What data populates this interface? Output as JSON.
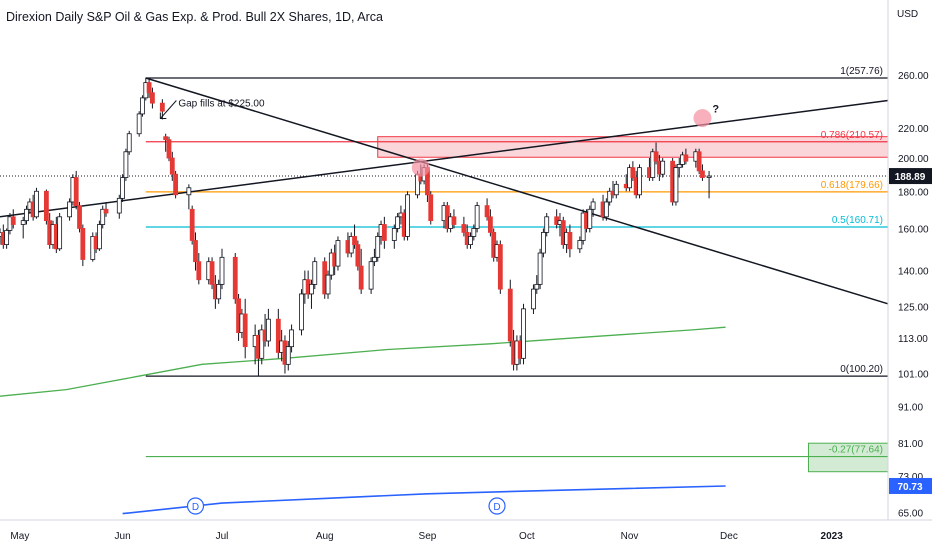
{
  "header": {
    "title": "Direxion Daily S&P Oil & Gas Exp. & Prod. Bull 2X Shares, 1D, Arca",
    "currency": "USD"
  },
  "colors": {
    "up": "#ffffff",
    "down": "#e53935",
    "wick": "#131722",
    "fib_1": "#131722",
    "fib_0786": "#f23645",
    "fib_0618": "#ff9800",
    "fib_05": "#00bcd4",
    "fib_0": "#131722",
    "fib_neg027": "#4caf50",
    "ma_200": "#4caf50",
    "ma_long": "#2962ff",
    "zone_fill": "#f8c8cf",
    "zone_border": "#f23645",
    "target_fill": "#c8e6c9",
    "last_price_bg": "#131722",
    "ma_label_bg": "#2962ff"
  },
  "chart_data": {
    "type": "candlestick",
    "title": "Direxion Daily S&P Oil & Gas Exp. & Prod. Bull 2X Shares, 1D, Arca",
    "y_axis": {
      "scale": "log",
      "currency": "USD",
      "ticks": [
        260,
        220,
        200,
        180,
        160,
        140,
        125,
        113,
        101,
        91,
        81,
        73,
        65
      ],
      "tick_labels": [
        "260.00",
        "220.00",
        "200.00",
        "180.00",
        "160.00",
        "140.00",
        "125.00",
        "113.00",
        "101.00",
        "91.00",
        "81.00",
        "73.00",
        "65.00"
      ],
      "range": [
        63.5,
        302
      ]
    },
    "x_axis": {
      "labels": [
        "May",
        "Jun",
        "Jul",
        "Aug",
        "Sep",
        "Oct",
        "Nov",
        "Dec",
        "2023"
      ],
      "label_dates": [
        "2022-05-01",
        "2022-06-01",
        "2022-07-01",
        "2022-08-01",
        "2022-09-01",
        "2022-10-01",
        "2022-11-01",
        "2022-12-01",
        "2023-01-01"
      ],
      "range": [
        "2022-04-25",
        "2023-01-18"
      ]
    },
    "last_price": {
      "value": 188.89,
      "label": "188.89"
    },
    "ma_label": {
      "value": 70.73,
      "label": "70.73"
    },
    "fib_levels": [
      {
        "label": "1(257.76)",
        "value": 257.76,
        "color": "#131722"
      },
      {
        "label": "0.786(210.57)",
        "value": 210.57,
        "color": "#f23645"
      },
      {
        "label": "0.618(179.66)",
        "value": 179.66,
        "color": "#ff9800"
      },
      {
        "label": "0.5(160.71)",
        "value": 160.71,
        "color": "#00bcd4"
      },
      {
        "label": "0(100.20)",
        "value": 100.2,
        "color": "#131722"
      },
      {
        "label": "-0.27(77.64)",
        "value": 77.64,
        "color": "#4caf50"
      }
    ],
    "fib_start_date": "2022-06-08",
    "fib_end_date": "2023-01-18",
    "resistance_zone": {
      "start": "2022-08-17",
      "end": "2023-01-18",
      "low": 200.5,
      "high": 214
    },
    "target_zone": {
      "start": "2022-12-25",
      "end": "2023-01-18",
      "low": 74,
      "high": 81
    },
    "trendlines": [
      {
        "name": "descending",
        "from": [
          "2022-06-08",
          257.76
        ],
        "to": [
          "2023-01-18",
          126
        ]
      },
      {
        "name": "ascending",
        "from": [
          "2022-04-25",
          166
        ],
        "to": [
          "2023-01-18",
          240
        ]
      }
    ],
    "ma_200": [
      [
        "2022-04-25",
        94
      ],
      [
        "2022-05-15",
        96
      ],
      [
        "2022-06-05",
        100
      ],
      [
        "2022-06-25",
        104
      ],
      [
        "2022-07-20",
        106
      ],
      [
        "2022-08-20",
        109
      ],
      [
        "2022-09-20",
        111
      ],
      [
        "2022-10-20",
        113.5
      ],
      [
        "2022-11-20",
        116
      ],
      [
        "2022-11-30",
        117
      ]
    ],
    "ma_long": [
      [
        "2022-06-01",
        64.8
      ],
      [
        "2022-07-01",
        67
      ],
      [
        "2022-08-01",
        68
      ],
      [
        "2022-09-01",
        69
      ],
      [
        "2022-10-01",
        69.6
      ],
      [
        "2022-11-01",
        70.2
      ],
      [
        "2022-11-30",
        70.73
      ]
    ],
    "dividend_markers": [
      {
        "date": "2022-06-23",
        "label": "D"
      },
      {
        "date": "2022-09-22",
        "label": "D"
      }
    ],
    "circles": [
      {
        "date": "2022-08-30",
        "value": 194
      },
      {
        "date": "2022-11-23",
        "value": 227
      }
    ],
    "annotations": [
      {
        "text": "Gap fills at $225.00",
        "date": "2022-06-13",
        "value": 234
      },
      {
        "text": "?",
        "date": "2022-11-26",
        "value": 231
      }
    ],
    "ohlc": [
      [
        "2022-04-25",
        156,
        160,
        152,
        158
      ],
      [
        "2022-04-26",
        158,
        162,
        150,
        152
      ],
      [
        "2022-04-27",
        152,
        160,
        150,
        159
      ],
      [
        "2022-04-28",
        159,
        168,
        157,
        166
      ],
      [
        "2022-04-29",
        166,
        170,
        160,
        162
      ],
      [
        "2022-05-02",
        162,
        166,
        155,
        164
      ],
      [
        "2022-05-03",
        164,
        172,
        162,
        170
      ],
      [
        "2022-05-04",
        170,
        176,
        168,
        174
      ],
      [
        "2022-05-05",
        174,
        178,
        164,
        166
      ],
      [
        "2022-05-06",
        166,
        182,
        165,
        180
      ],
      [
        "2022-05-09",
        180,
        181,
        162,
        164
      ],
      [
        "2022-05-10",
        164,
        168,
        150,
        152
      ],
      [
        "2022-05-11",
        152,
        164,
        150,
        162
      ],
      [
        "2022-05-12",
        162,
        166,
        148,
        150
      ],
      [
        "2022-05-13",
        150,
        168,
        149,
        166
      ],
      [
        "2022-05-16",
        166,
        176,
        164,
        174
      ],
      [
        "2022-05-17",
        174,
        190,
        172,
        188
      ],
      [
        "2022-05-18",
        188,
        192,
        170,
        172
      ],
      [
        "2022-05-19",
        172,
        174,
        158,
        160
      ],
      [
        "2022-05-20",
        160,
        162,
        142,
        145
      ],
      [
        "2022-05-23",
        145,
        158,
        144,
        156
      ],
      [
        "2022-05-24",
        156,
        158,
        148,
        150
      ],
      [
        "2022-05-25",
        150,
        164,
        149,
        162
      ],
      [
        "2022-05-26",
        162,
        172,
        160,
        170
      ],
      [
        "2022-05-27",
        170,
        174,
        166,
        168
      ],
      [
        "2022-05-31",
        168,
        178,
        165,
        176
      ],
      [
        "2022-06-01",
        176,
        190,
        174,
        188
      ],
      [
        "2022-06-02",
        188,
        206,
        186,
        204
      ],
      [
        "2022-06-03",
        204,
        218,
        202,
        216
      ],
      [
        "2022-06-06",
        216,
        232,
        214,
        230
      ],
      [
        "2022-06-07",
        230,
        244,
        228,
        242
      ],
      [
        "2022-06-08",
        242,
        258,
        240,
        254
      ],
      [
        "2022-06-09",
        254,
        257.76,
        242,
        246
      ],
      [
        "2022-06-10",
        246,
        250,
        234,
        238
      ],
      [
        "2022-06-13",
        238,
        241,
        226,
        232
      ],
      [
        "2022-06-14",
        214,
        216,
        204,
        212
      ],
      [
        "2022-06-15",
        212,
        214,
        198,
        200
      ],
      [
        "2022-06-16",
        200,
        204,
        186,
        190
      ],
      [
        "2022-06-17",
        190,
        192,
        176,
        178
      ],
      [
        "2022-06-21",
        178,
        184,
        170,
        182
      ],
      [
        "2022-06-22",
        170,
        172,
        152,
        154
      ],
      [
        "2022-06-23",
        154,
        158,
        140,
        144
      ],
      [
        "2022-06-24",
        144,
        148,
        134,
        136
      ],
      [
        "2022-06-27",
        136,
        146,
        134,
        144
      ],
      [
        "2022-06-28",
        144,
        146,
        132,
        134
      ],
      [
        "2022-06-29",
        134,
        138,
        124,
        128
      ],
      [
        "2022-06-30",
        128,
        136,
        126,
        134
      ],
      [
        "2022-07-01",
        134,
        150,
        132,
        146
      ],
      [
        "2022-07-05",
        146,
        148,
        126,
        128
      ],
      [
        "2022-07-06",
        128,
        130,
        112,
        115
      ],
      [
        "2022-07-07",
        115,
        124,
        113,
        122
      ],
      [
        "2022-07-08",
        122,
        128,
        106,
        110
      ],
      [
        "2022-07-11",
        110,
        118,
        104,
        114
      ],
      [
        "2022-07-12",
        114,
        116,
        100.2,
        106
      ],
      [
        "2022-07-13",
        106,
        118,
        104,
        116
      ],
      [
        "2022-07-14",
        116,
        122,
        110,
        112
      ],
      [
        "2022-07-15",
        112,
        124,
        110,
        120
      ],
      [
        "2022-07-18",
        120,
        124,
        106,
        108
      ],
      [
        "2022-07-19",
        108,
        116,
        105,
        112
      ],
      [
        "2022-07-20",
        112,
        114,
        101,
        104
      ],
      [
        "2022-07-21",
        104,
        112,
        102,
        110
      ],
      [
        "2022-07-22",
        110,
        118,
        108,
        116
      ],
      [
        "2022-07-25",
        116,
        132,
        114,
        130
      ],
      [
        "2022-07-26",
        130,
        140,
        126,
        136
      ],
      [
        "2022-07-27",
        136,
        140,
        128,
        130
      ],
      [
        "2022-07-28",
        130,
        136,
        124,
        134
      ],
      [
        "2022-07-29",
        134,
        146,
        132,
        144
      ],
      [
        "2022-08-01",
        144,
        146,
        128,
        130
      ],
      [
        "2022-08-02",
        130,
        140,
        128,
        138
      ],
      [
        "2022-08-03",
        138,
        150,
        136,
        148
      ],
      [
        "2022-08-04",
        148,
        152,
        138,
        142
      ],
      [
        "2022-08-05",
        142,
        156,
        140,
        154
      ],
      [
        "2022-08-08",
        154,
        158,
        146,
        148
      ],
      [
        "2022-08-09",
        148,
        158,
        146,
        156
      ],
      [
        "2022-08-10",
        156,
        162,
        150,
        152
      ],
      [
        "2022-08-11",
        152,
        154,
        140,
        142
      ],
      [
        "2022-08-12",
        142,
        150,
        130,
        132
      ],
      [
        "2022-08-15",
        132,
        146,
        130,
        144
      ],
      [
        "2022-08-16",
        144,
        150,
        142,
        146
      ],
      [
        "2022-08-17",
        146,
        158,
        144,
        156
      ],
      [
        "2022-08-18",
        156,
        164,
        152,
        162
      ],
      [
        "2022-08-19",
        162,
        166,
        150,
        154
      ],
      [
        "2022-08-22",
        154,
        162,
        150,
        160
      ],
      [
        "2022-08-23",
        160,
        168,
        158,
        166
      ],
      [
        "2022-08-24",
        166,
        172,
        162,
        168
      ],
      [
        "2022-08-25",
        168,
        170,
        154,
        156
      ],
      [
        "2022-08-26",
        156,
        180,
        154,
        178
      ],
      [
        "2022-08-29",
        178,
        192,
        176,
        190
      ],
      [
        "2022-08-30",
        190,
        196,
        184,
        186
      ],
      [
        "2022-08-31",
        186,
        196,
        184,
        194
      ],
      [
        "2022-09-01",
        194,
        196,
        174,
        178
      ],
      [
        "2022-09-02",
        178,
        180,
        162,
        164
      ],
      [
        "2022-09-06",
        164,
        174,
        160,
        172
      ],
      [
        "2022-09-07",
        172,
        174,
        158,
        160
      ],
      [
        "2022-09-08",
        160,
        168,
        158,
        166
      ],
      [
        "2022-09-09",
        166,
        170,
        160,
        162
      ],
      [
        "2022-09-12",
        162,
        166,
        156,
        158
      ],
      [
        "2022-09-13",
        158,
        162,
        150,
        152
      ],
      [
        "2022-09-14",
        152,
        158,
        150,
        156
      ],
      [
        "2022-09-15",
        156,
        162,
        154,
        160
      ],
      [
        "2022-09-16",
        160,
        174,
        158,
        172
      ],
      [
        "2022-09-19",
        172,
        176,
        164,
        166
      ],
      [
        "2022-09-20",
        166,
        170,
        156,
        158
      ],
      [
        "2022-09-21",
        158,
        160,
        144,
        146
      ],
      [
        "2022-09-22",
        146,
        154,
        144,
        152
      ],
      [
        "2022-09-23",
        152,
        154,
        130,
        132
      ],
      [
        "2022-09-26",
        132,
        136,
        110,
        112
      ],
      [
        "2022-09-27",
        112,
        116,
        102,
        104
      ],
      [
        "2022-09-28",
        104,
        114,
        102,
        112
      ],
      [
        "2022-09-29",
        112,
        114,
        104,
        106
      ],
      [
        "2022-09-30",
        106,
        126,
        104,
        124
      ],
      [
        "2022-10-03",
        124,
        134,
        122,
        132
      ],
      [
        "2022-10-04",
        132,
        138,
        130,
        134
      ],
      [
        "2022-10-05",
        134,
        150,
        132,
        148
      ],
      [
        "2022-10-06",
        148,
        160,
        146,
        158
      ],
      [
        "2022-10-07",
        158,
        168,
        156,
        166
      ],
      [
        "2022-10-10",
        166,
        170,
        160,
        162
      ],
      [
        "2022-10-11",
        162,
        168,
        156,
        164
      ],
      [
        "2022-10-12",
        164,
        166,
        150,
        152
      ],
      [
        "2022-10-13",
        152,
        160,
        148,
        158
      ],
      [
        "2022-10-14",
        158,
        162,
        146,
        150
      ],
      [
        "2022-10-17",
        150,
        156,
        148,
        154
      ],
      [
        "2022-10-18",
        154,
        170,
        152,
        168
      ],
      [
        "2022-10-19",
        168,
        170,
        158,
        160
      ],
      [
        "2022-10-20",
        160,
        172,
        158,
        170
      ],
      [
        "2022-10-21",
        170,
        176,
        166,
        174
      ],
      [
        "2022-10-24",
        174,
        178,
        164,
        166
      ],
      [
        "2022-10-25",
        166,
        176,
        164,
        174
      ],
      [
        "2022-10-26",
        174,
        182,
        172,
        180
      ],
      [
        "2022-10-27",
        180,
        186,
        176,
        178
      ],
      [
        "2022-10-28",
        178,
        186,
        176,
        184
      ],
      [
        "2022-10-31",
        184,
        190,
        180,
        182
      ],
      [
        "2022-11-01",
        182,
        196,
        180,
        194
      ],
      [
        "2022-11-02",
        194,
        198,
        186,
        188
      ],
      [
        "2022-11-03",
        188,
        192,
        176,
        178
      ],
      [
        "2022-11-04",
        178,
        196,
        176,
        194
      ],
      [
        "2022-11-07",
        194,
        200,
        186,
        188
      ],
      [
        "2022-11-08",
        188,
        206,
        186,
        204
      ],
      [
        "2022-11-09",
        204,
        210,
        196,
        198
      ],
      [
        "2022-11-10",
        198,
        202,
        186,
        190
      ],
      [
        "2022-11-11",
        190,
        200,
        188,
        198
      ],
      [
        "2022-11-14",
        198,
        200,
        172,
        174
      ],
      [
        "2022-11-15",
        174,
        196,
        172,
        194
      ],
      [
        "2022-11-16",
        194,
        200,
        188,
        196
      ],
      [
        "2022-11-17",
        196,
        204,
        194,
        202
      ],
      [
        "2022-11-18",
        202,
        206,
        196,
        198
      ],
      [
        "2022-11-21",
        198,
        206,
        194,
        204
      ],
      [
        "2022-11-22",
        204,
        206,
        190,
        192
      ],
      [
        "2022-11-23",
        192,
        196,
        186,
        188
      ],
      [
        "2022-11-25",
        188,
        192,
        176,
        188.89
      ]
    ]
  }
}
